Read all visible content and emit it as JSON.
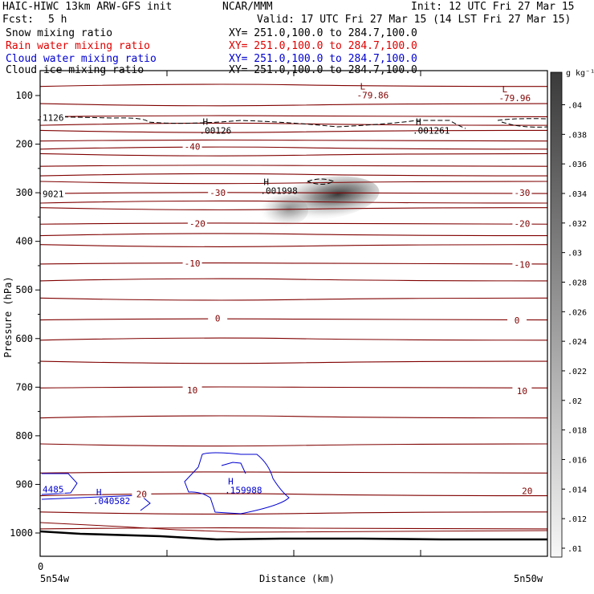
{
  "header": {
    "title_left": "HAIC-HIWC 13km ARW-GFS init",
    "org": "NCAR/MMM",
    "init": "Init: 12 UTC Fri 27 Mar 15",
    "fcst_label": "Fcst:",
    "fcst_value": "5 h",
    "valid": "Valid: 17 UTC Fri 27 Mar 15 (14 LST Fri 27 Mar 15)"
  },
  "fields": [
    {
      "name": "Snow mixing ratio",
      "xy": "XY= 251.0,100.0 to 284.7,100.0",
      "color": "#000000"
    },
    {
      "name": "Rain water mixing ratio",
      "xy": "XY= 251.0,100.0 to 284.7,100.0",
      "color": "#e00000"
    },
    {
      "name": "Cloud water mixing ratio",
      "xy": "XY= 251.0,100.0 to 284.7,100.0",
      "color": "#0000d0"
    },
    {
      "name": "Cloud ice mixing ratio",
      "xy": "XY= 251.0,100.0 to 284.7,100.0",
      "color": "#000000"
    }
  ],
  "chart_data": {
    "type": "cross-section",
    "ylabel": "Pressure (hPa)",
    "xlabel": "Distance (km)",
    "y_ticks": [
      100,
      200,
      300,
      400,
      500,
      600,
      700,
      800,
      900,
      1000
    ],
    "x_start_tick": "0",
    "x_left_label": "5n54w",
    "x_right_label": "5n50w",
    "colorbar": {
      "unit": "g kg⁻¹",
      "ticks": [
        0.04,
        0.038,
        0.036,
        0.034,
        0.032,
        0.03,
        0.028,
        0.026,
        0.024,
        0.022,
        0.02,
        0.018,
        0.016,
        0.014,
        0.012,
        0.01
      ],
      "tick_labels": [
        ".04",
        ".038",
        ".036",
        ".034",
        ".032",
        ".03",
        ".028",
        ".026",
        ".024",
        ".022",
        ".02",
        ".018",
        ".016",
        ".014",
        ".012",
        ".01"
      ]
    },
    "snow_max": {
      "x_frac": 0.52,
      "pressure": 302,
      "max_g_per_kg": 0.04
    },
    "temperature_contours": [
      {
        "label": "-40",
        "label_positions": [
          [
            0.3,
            205
          ]
        ]
      },
      {
        "label": "-30",
        "label_positions": [
          [
            0.35,
            300
          ],
          [
            0.95,
            300
          ]
        ]
      },
      {
        "label": "-20",
        "label_positions": [
          [
            0.31,
            363
          ],
          [
            0.95,
            363
          ]
        ]
      },
      {
        "label": "-10",
        "label_positions": [
          [
            0.3,
            445
          ],
          [
            0.95,
            448
          ]
        ]
      },
      {
        "label": "0",
        "label_positions": [
          [
            0.35,
            558
          ],
          [
            0.94,
            562
          ]
        ]
      },
      {
        "label": "10",
        "label_positions": [
          [
            0.3,
            706
          ],
          [
            0.95,
            708
          ]
        ]
      },
      {
        "label": "20",
        "label_positions": [
          [
            0.2,
            920
          ],
          [
            0.96,
            913
          ]
        ]
      }
    ],
    "extrema_labels": [
      {
        "type": "L",
        "value": "-79.86",
        "x_frac": 0.64,
        "pressure": 88,
        "color": "#800000"
      },
      {
        "type": "L",
        "value": "-79.96",
        "x_frac": 0.92,
        "pressure": 93,
        "color": "#800000"
      },
      {
        "type": "H",
        "value": ".00126",
        "x_frac": 0.33,
        "pressure": 160,
        "color": "#000000"
      },
      {
        "type": "H",
        "value": ".001261",
        "x_frac": 0.75,
        "pressure": 160,
        "color": "#000000"
      },
      {
        "type": "H",
        "value": ".001998",
        "x_frac": 0.45,
        "pressure": 284,
        "color": "#000000"
      },
      {
        "type": "H",
        "value": ".159988",
        "x_frac": 0.38,
        "pressure": 900,
        "color": "#0000d0"
      },
      {
        "type": "H",
        "value": ".040582",
        "x_frac": 0.12,
        "pressure": 922,
        "color": "#0000d0"
      }
    ],
    "edge_labels": [
      {
        "text": "1126",
        "pressure": 145,
        "color": "#000000"
      },
      {
        "text": "9021",
        "pressure": 302,
        "color": "#000000"
      },
      {
        "text": "4485",
        "pressure": 910,
        "color": "#0000d0"
      }
    ]
  }
}
